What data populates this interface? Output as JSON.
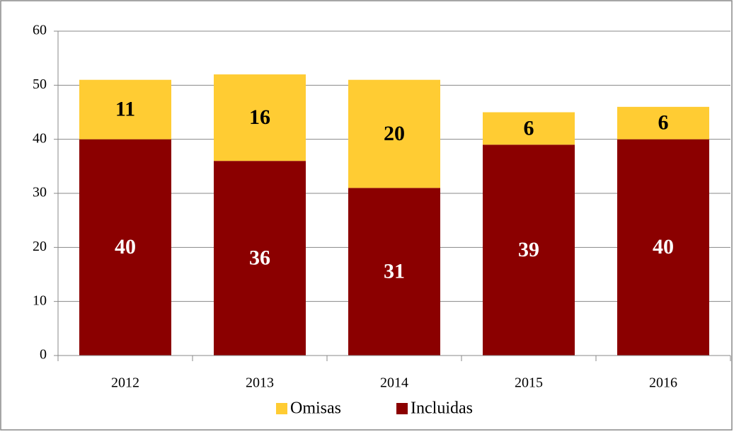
{
  "chart_data": {
    "type": "stacked_bar",
    "categories": [
      "2012",
      "2013",
      "2014",
      "2015",
      "2016"
    ],
    "series": [
      {
        "name": "Incluidas",
        "color": "#8b0000",
        "values": [
          40,
          36,
          31,
          39,
          40
        ]
      },
      {
        "name": "Omisas",
        "color": "#ffcc33",
        "values": [
          11,
          16,
          20,
          6,
          6
        ]
      }
    ],
    "ylim": [
      0,
      60
    ],
    "yticks": [
      0,
      10,
      20,
      30,
      40,
      50,
      60
    ],
    "grid": true,
    "legend": "bottom"
  }
}
